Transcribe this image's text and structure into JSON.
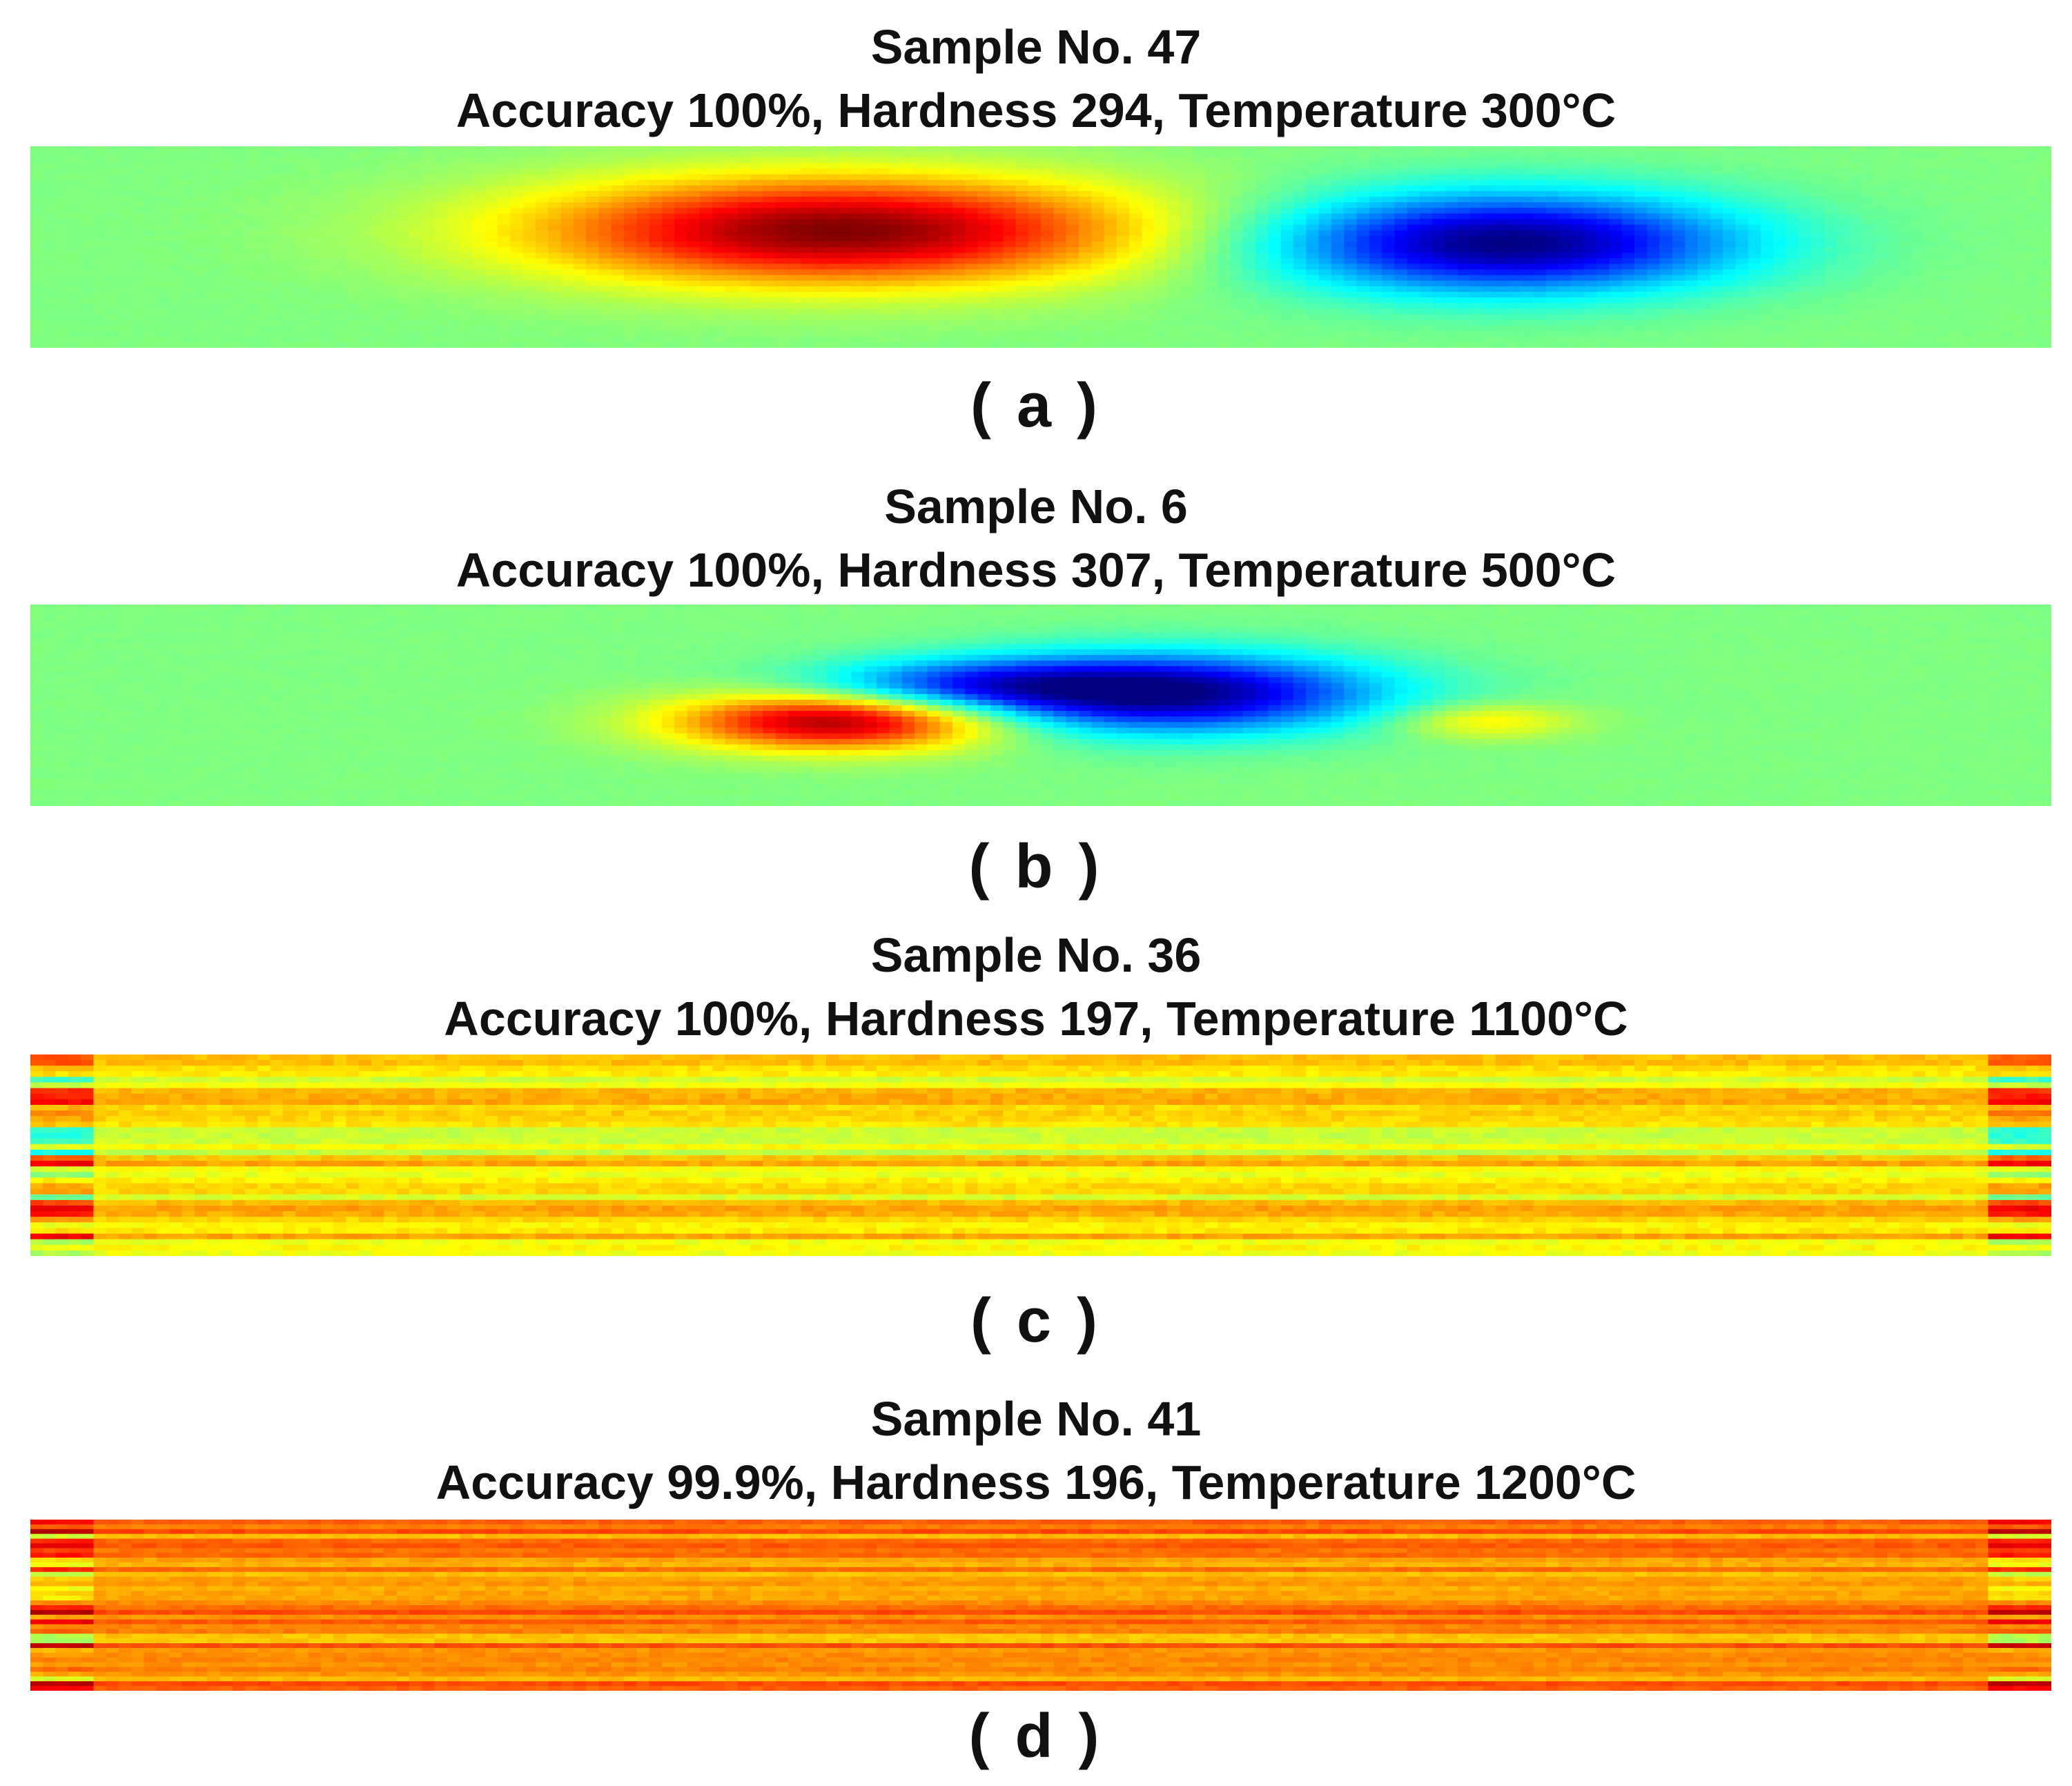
{
  "figure": {
    "panels": [
      {
        "id": "a",
        "title_line1": "Sample No.  47",
        "title_line2": "Accuracy 100%, Hardness 294, Temperature 300°C",
        "caption": "( a )"
      },
      {
        "id": "b",
        "title_line1": "Sample No.  6",
        "title_line2": "Accuracy 100%, Hardness 307, Temperature 500°C",
        "caption": "( b )"
      },
      {
        "id": "c",
        "title_line1": "Sample No.  36",
        "title_line2": "Accuracy 100%, Hardness 197, Temperature 1100°C",
        "caption": "( c )"
      },
      {
        "id": "d",
        "title_line1": "Sample No.  41",
        "title_line2": "Accuracy 99.9%, Hardness 196, Temperature 1200°C",
        "caption": "( d )"
      }
    ]
  },
  "chart_data": [
    {
      "type": "heatmap",
      "title": "Sample No.  47 — Accuracy 100%, Hardness 294, Temperature 300°C",
      "sample_no": 47,
      "accuracy_pct": 100,
      "hardness": 294,
      "temperature_c": 300,
      "colormap": "jet",
      "background_level": 0.0,
      "features": [
        {
          "kind": "positive-blob",
          "x_center": 0.4,
          "y_center": 0.42,
          "x_halfwidth": 0.17,
          "y_halfwidth": 0.3,
          "peak": 1.0
        },
        {
          "kind": "negative-blob",
          "x_center": 0.73,
          "y_center": 0.48,
          "x_halfwidth": 0.13,
          "y_halfwidth": 0.28,
          "peak": -1.0
        }
      ]
    },
    {
      "type": "heatmap",
      "title": "Sample No.  6 — Accuracy 100%, Hardness 307, Temperature 500°C",
      "sample_no": 6,
      "accuracy_pct": 100,
      "hardness": 307,
      "temperature_c": 500,
      "colormap": "jet",
      "background_level": 0.0,
      "features": [
        {
          "kind": "positive-blob",
          "x_center": 0.4,
          "y_center": 0.58,
          "x_halfwidth": 0.09,
          "y_halfwidth": 0.16,
          "peak": 0.95
        },
        {
          "kind": "negative-blob",
          "x_center": 0.56,
          "y_center": 0.44,
          "x_halfwidth": 0.12,
          "y_halfwidth": 0.22,
          "peak": -1.0
        },
        {
          "kind": "negative-blob",
          "x_center": 0.46,
          "y_center": 0.4,
          "x_halfwidth": 0.09,
          "y_halfwidth": 0.14,
          "peak": -0.45
        },
        {
          "kind": "positive-blob",
          "x_center": 0.72,
          "y_center": 0.58,
          "x_halfwidth": 0.05,
          "y_halfwidth": 0.1,
          "peak": 0.3
        }
      ]
    },
    {
      "type": "heatmap",
      "title": "Sample No.  36 — Accuracy 100%, Hardness 197, Temperature 1100°C",
      "sample_no": 36,
      "accuracy_pct": 100,
      "hardness": 197,
      "temperature_c": 1100,
      "colormap": "jet",
      "background_level": 0.28,
      "pattern": "horizontal-streaks",
      "noise_amplitude": 0.16,
      "edge_streaks": true
    },
    {
      "type": "heatmap",
      "title": "Sample No.  41 — Accuracy 99.9%, Hardness 196, Temperature 1200°C",
      "sample_no": 41,
      "accuracy_pct": 99.9,
      "hardness": 196,
      "temperature_c": 1200,
      "colormap": "jet",
      "background_level": 0.48,
      "pattern": "horizontal-streaks",
      "noise_amplitude": 0.13,
      "edge_streaks": true
    }
  ]
}
